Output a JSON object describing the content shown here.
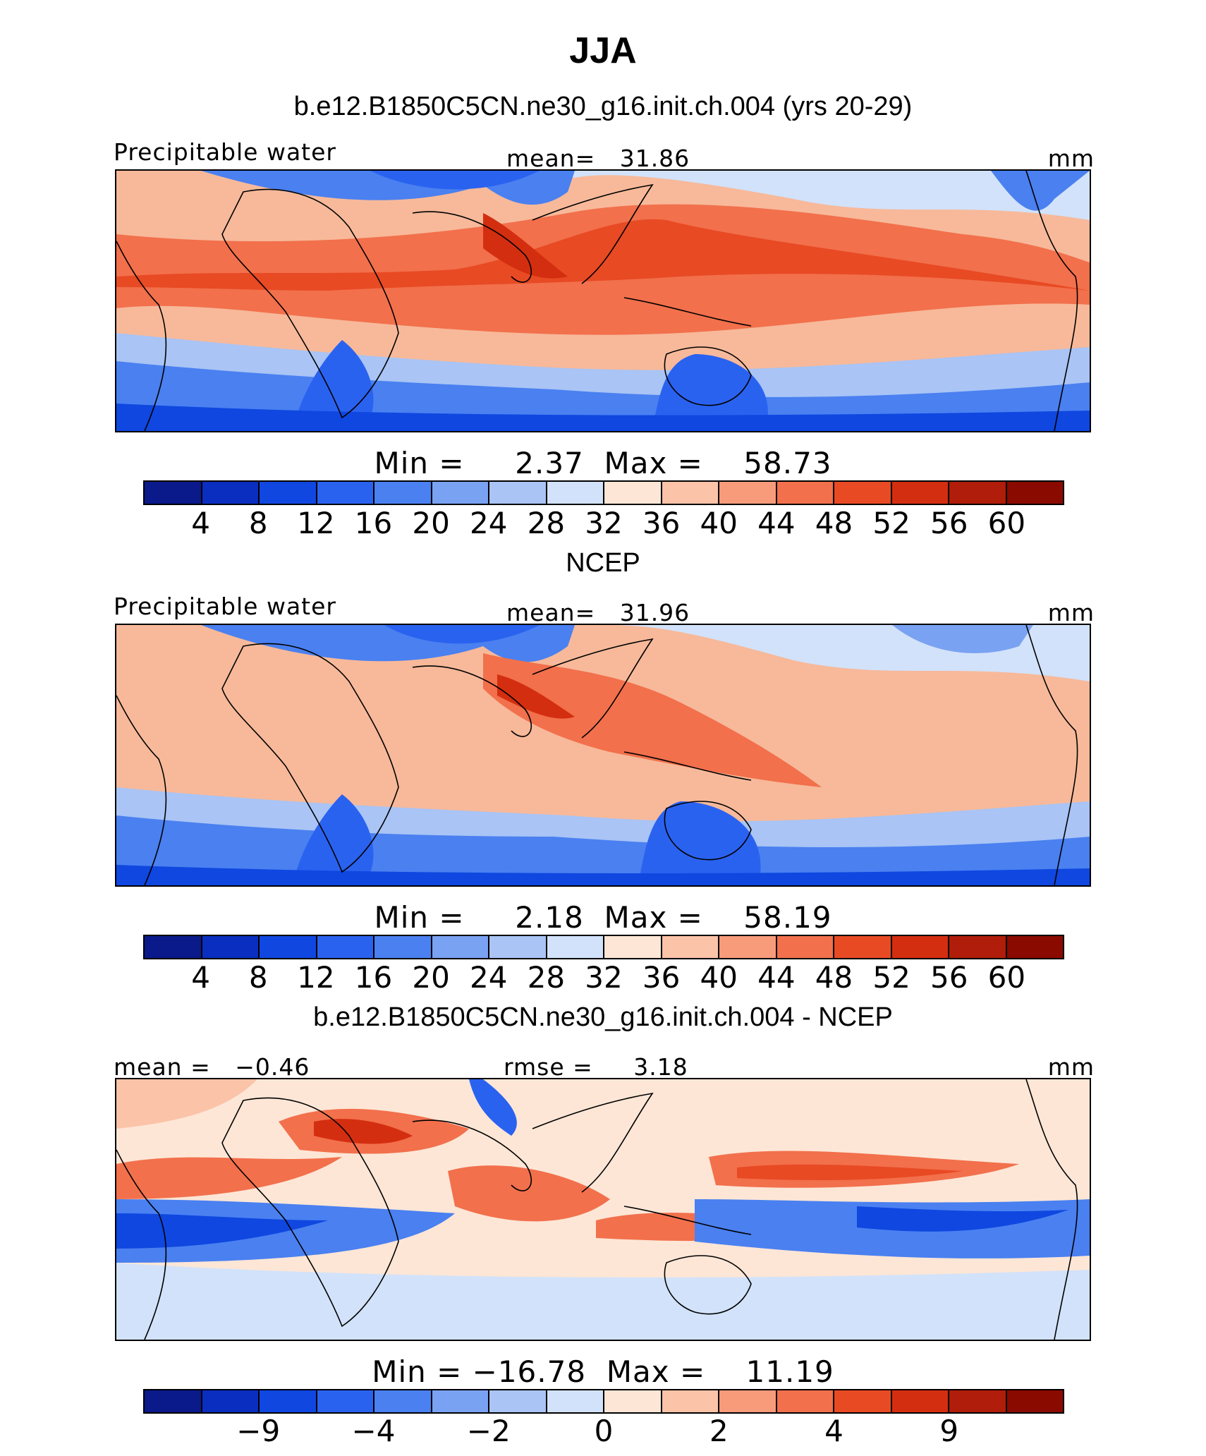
{
  "title": "JJA",
  "colors": [
    "#0a1a8a",
    "#0a2ec0",
    "#0f47e0",
    "#2a62f0",
    "#4a80f0",
    "#7aa2f2",
    "#a9c4f5",
    "#d2e2fa",
    "#fde6d6",
    "#fbc3a8",
    "#f79b7a",
    "#f2704c",
    "#e84a24",
    "#d42e10",
    "#b01d0a",
    "#8a0a00"
  ],
  "panels": [
    {
      "subtitle": "b.e12.B1850C5CN.ne30_g16.init.ch.004 (yrs 20-29)",
      "left_label": "Precipitable water",
      "center_label": "mean=   31.86",
      "right_label": "mm",
      "min_max": "Min =     2.37  Max =    58.73",
      "ticks": [
        "4",
        "8",
        "12",
        "16",
        "20",
        "24",
        "28",
        "32",
        "36",
        "40",
        "44",
        "48",
        "52",
        "56",
        "60"
      ]
    },
    {
      "subtitle": "NCEP",
      "left_label": "Precipitable water",
      "center_label": "mean=   31.96",
      "right_label": "mm",
      "min_max": "Min =     2.18  Max =    58.19",
      "ticks": [
        "4",
        "8",
        "12",
        "16",
        "20",
        "24",
        "28",
        "32",
        "36",
        "40",
        "44",
        "48",
        "52",
        "56",
        "60"
      ]
    },
    {
      "subtitle": "b.e12.B1850C5CN.ne30_g16.init.ch.004 - NCEP",
      "left_label": "mean =   −0.46",
      "center_label": "rmse =     3.18",
      "right_label": "mm",
      "min_max": "Min = −16.78  Max =    11.19",
      "ticks": [
        "−9",
        "−4",
        "−2",
        "0",
        "2",
        "4",
        "9"
      ]
    }
  ]
}
